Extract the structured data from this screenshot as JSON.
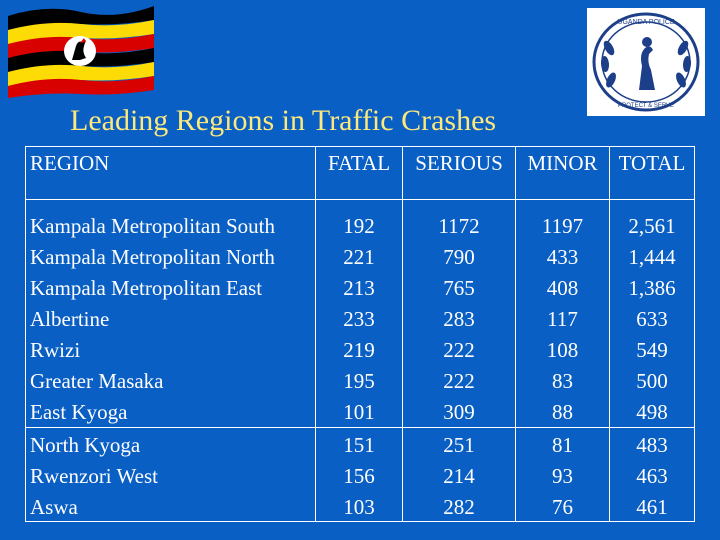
{
  "title": "Leading Regions in Traffic Crashes",
  "colors": {
    "background": "#0a5fc4",
    "title": "#fde87c",
    "text": "#ffffff",
    "flag_black": "#000000",
    "flag_yellow": "#fcdc04",
    "flag_red": "#d90000"
  },
  "logos": [
    {
      "name": "uganda-flag"
    },
    {
      "name": "uganda-police-seal",
      "text_top": "UGANDA POLICE",
      "text_bottom": "PROTECT & SERVE"
    }
  ],
  "table": {
    "headers": [
      "REGION",
      "FATAL",
      "SERIOUS",
      "MINOR",
      "TOTAL"
    ],
    "rows": [
      [
        "Kampala Metropolitan South",
        "192",
        "1172",
        "1197",
        "2,561"
      ],
      [
        "Kampala Metropolitan North",
        "221",
        "790",
        "433",
        "1,444"
      ],
      [
        "Kampala Metropolitan East",
        "213",
        "765",
        "408",
        "1,386"
      ],
      [
        "Albertine",
        "233",
        "283",
        "117",
        "633"
      ],
      [
        "Rwizi",
        "219",
        "222",
        "108",
        "549"
      ],
      [
        "Greater Masaka",
        "195",
        "222",
        "83",
        "500"
      ],
      [
        "East Kyoga",
        "101",
        "309",
        "88",
        "498"
      ],
      [
        "North Kyoga",
        "151",
        "251",
        "81",
        "483"
      ],
      [
        "Rwenzori West",
        "156",
        "214",
        "93",
        "463"
      ],
      [
        "Aswa",
        "103",
        "282",
        "76",
        "461"
      ]
    ]
  }
}
